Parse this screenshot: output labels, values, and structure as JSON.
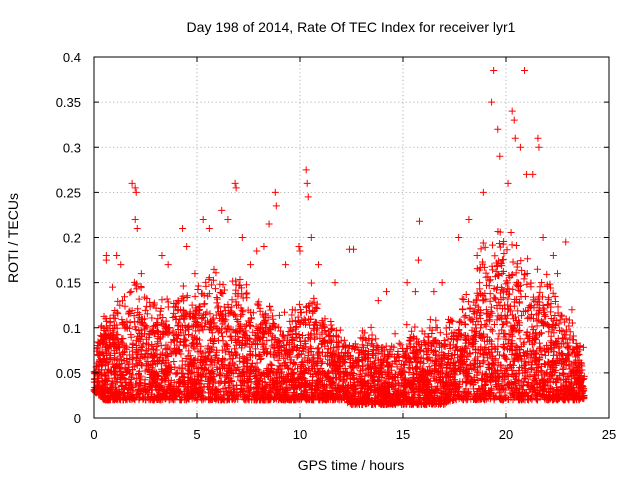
{
  "chart_data": {
    "type": "scatter",
    "title": "Day 198 of 2014, Rate Of TEC Index for receiver lyr1",
    "xlabel": "GPS time / hours",
    "ylabel": "ROTI / TECUs",
    "xlim": [
      0,
      25
    ],
    "ylim": [
      0,
      0.4
    ],
    "xticks": [
      0,
      5,
      10,
      15,
      20,
      25
    ],
    "xtick_labels": [
      "0",
      "5",
      "10",
      "15",
      "20",
      "25"
    ],
    "yticks": [
      0,
      0.05,
      0.1,
      0.15,
      0.2,
      0.25,
      0.3,
      0.35,
      0.4
    ],
    "ytick_labels": [
      "0",
      "0.05",
      "0.1",
      "0.15",
      "0.2",
      "0.25",
      "0.3",
      "0.35",
      "0.4"
    ],
    "grid": true,
    "marker": "+",
    "color": "#ff0000",
    "series": [
      {
        "name": "ROTI",
        "envelope": {
          "hours": [
            0,
            0.5,
            1,
            1.5,
            2,
            2.5,
            3,
            3.5,
            4,
            4.5,
            5,
            5.5,
            6,
            6.5,
            7,
            7.5,
            8,
            8.5,
            9,
            9.5,
            10,
            10.5,
            11,
            11.5,
            12,
            12.5,
            13,
            13.5,
            14,
            14.5,
            15,
            15.5,
            16,
            16.5,
            17,
            17.5,
            18,
            18.5,
            19,
            19.5,
            20,
            20.5,
            21,
            21.5,
            22,
            22.5,
            23,
            23.5,
            23.8
          ],
          "typical": [
            0.07,
            0.1,
            0.11,
            0.12,
            0.14,
            0.12,
            0.11,
            0.12,
            0.14,
            0.13,
            0.13,
            0.14,
            0.15,
            0.13,
            0.15,
            0.12,
            0.11,
            0.12,
            0.11,
            0.1,
            0.12,
            0.13,
            0.11,
            0.1,
            0.09,
            0.08,
            0.09,
            0.09,
            0.08,
            0.08,
            0.09,
            0.09,
            0.09,
            0.1,
            0.09,
            0.1,
            0.13,
            0.15,
            0.17,
            0.19,
            0.18,
            0.17,
            0.16,
            0.15,
            0.14,
            0.12,
            0.1,
            0.08,
            0.07
          ],
          "floor": [
            0.03,
            0.02,
            0.02,
            0.02,
            0.02,
            0.02,
            0.02,
            0.02,
            0.02,
            0.02,
            0.02,
            0.02,
            0.02,
            0.02,
            0.02,
            0.02,
            0.02,
            0.02,
            0.02,
            0.02,
            0.02,
            0.02,
            0.02,
            0.02,
            0.02,
            0.015,
            0.015,
            0.015,
            0.015,
            0.015,
            0.015,
            0.015,
            0.015,
            0.015,
            0.015,
            0.02,
            0.02,
            0.02,
            0.02,
            0.02,
            0.02,
            0.02,
            0.02,
            0.02,
            0.02,
            0.02,
            0.02,
            0.02,
            0.02
          ]
        },
        "peaks": [
          [
            0.6,
            0.18
          ],
          [
            0.6,
            0.175
          ],
          [
            0.9,
            0.145
          ],
          [
            1.1,
            0.18
          ],
          [
            1.3,
            0.17
          ],
          [
            1.85,
            0.26
          ],
          [
            2.0,
            0.255
          ],
          [
            2.05,
            0.25
          ],
          [
            2.0,
            0.22
          ],
          [
            2.1,
            0.21
          ],
          [
            2.3,
            0.16
          ],
          [
            3.3,
            0.18
          ],
          [
            3.6,
            0.17
          ],
          [
            4.3,
            0.21
          ],
          [
            4.5,
            0.19
          ],
          [
            4.9,
            0.16
          ],
          [
            5.3,
            0.22
          ],
          [
            5.6,
            0.21
          ],
          [
            6.2,
            0.23
          ],
          [
            6.5,
            0.22
          ],
          [
            6.85,
            0.26
          ],
          [
            6.9,
            0.255
          ],
          [
            7.2,
            0.2
          ],
          [
            7.6,
            0.17
          ],
          [
            7.9,
            0.185
          ],
          [
            8.25,
            0.19
          ],
          [
            8.5,
            0.215
          ],
          [
            8.8,
            0.25
          ],
          [
            8.85,
            0.235
          ],
          [
            9.3,
            0.17
          ],
          [
            9.95,
            0.19
          ],
          [
            10.0,
            0.185
          ],
          [
            10.3,
            0.275
          ],
          [
            10.35,
            0.26
          ],
          [
            10.4,
            0.245
          ],
          [
            10.55,
            0.2
          ],
          [
            10.9,
            0.17
          ],
          [
            11.7,
            0.15
          ],
          [
            12.4,
            0.187
          ],
          [
            12.6,
            0.187
          ],
          [
            13.8,
            0.13
          ],
          [
            14.2,
            0.14
          ],
          [
            15.2,
            0.15
          ],
          [
            15.6,
            0.14
          ],
          [
            15.75,
            0.175
          ],
          [
            15.8,
            0.218
          ],
          [
            16.5,
            0.14
          ],
          [
            16.9,
            0.15
          ],
          [
            17.7,
            0.2
          ],
          [
            18.2,
            0.22
          ],
          [
            18.6,
            0.18
          ],
          [
            18.9,
            0.25
          ],
          [
            19.3,
            0.35
          ],
          [
            19.4,
            0.385
          ],
          [
            19.6,
            0.32
          ],
          [
            19.7,
            0.29
          ],
          [
            20.1,
            0.26
          ],
          [
            20.3,
            0.34
          ],
          [
            20.4,
            0.33
          ],
          [
            20.45,
            0.31
          ],
          [
            20.7,
            0.3
          ],
          [
            20.9,
            0.385
          ],
          [
            21.0,
            0.27
          ],
          [
            21.3,
            0.27
          ],
          [
            21.55,
            0.31
          ],
          [
            21.6,
            0.3
          ],
          [
            21.8,
            0.2
          ],
          [
            22.3,
            0.18
          ],
          [
            22.5,
            0.16
          ],
          [
            22.9,
            0.195
          ],
          [
            23.2,
            0.12
          ],
          [
            23.6,
            0.08
          ]
        ]
      }
    ]
  }
}
